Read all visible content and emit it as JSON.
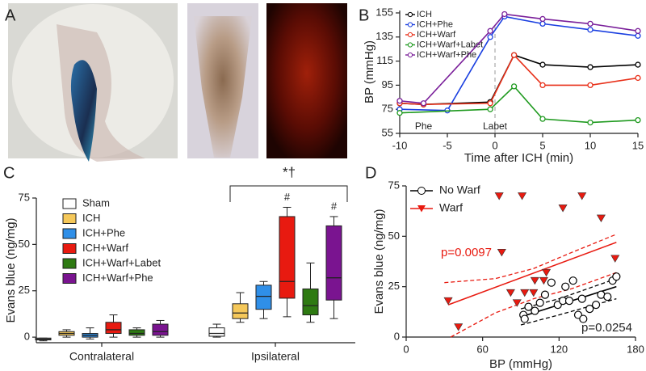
{
  "image_panel": {
    "label": "A"
  },
  "chart_data": [
    {
      "type": "line",
      "panel": "B",
      "y_label": "BP (mmHg)",
      "x_label": "Time after ICH (min)",
      "xlim": [
        -10,
        15
      ],
      "xticks": [
        -10,
        -5,
        0,
        5,
        10,
        15
      ],
      "ylim": [
        55,
        157
      ],
      "yticks": [
        55,
        75,
        95,
        115,
        135,
        155
      ],
      "annotations": [
        "Phe",
        "Labet"
      ],
      "legend": "upper left",
      "series": [
        {
          "name": "ICH",
          "color": "#000000",
          "x": [
            -10,
            -7.5,
            -0.5,
            2,
            5,
            10,
            15
          ],
          "values": [
            80,
            79,
            81,
            120,
            112,
            110,
            112
          ]
        },
        {
          "name": "ICH+Phe",
          "color": "#1a3fe0",
          "x": [
            -10,
            -5,
            -0.5,
            1,
            5,
            10,
            15
          ],
          "values": [
            75,
            74,
            135,
            152,
            146,
            141,
            136
          ]
        },
        {
          "name": "ICH+Warf",
          "color": "#e8311a",
          "x": [
            -10,
            -7.5,
            -0.5,
            2,
            5,
            10,
            15
          ],
          "values": [
            80,
            79,
            80,
            120,
            95,
            95,
            101
          ]
        },
        {
          "name": "ICH+Warf+Labet",
          "color": "#1f9a1f",
          "x": [
            -10,
            -0.5,
            2,
            5,
            10,
            15
          ],
          "values": [
            72,
            75,
            94,
            67,
            64,
            66
          ]
        },
        {
          "name": "ICH+Warf+Phe",
          "color": "#7a1f9a",
          "x": [
            -10,
            -7.5,
            -0.5,
            1,
            5,
            10,
            15
          ],
          "values": [
            82,
            80,
            140,
            154,
            150,
            146,
            140
          ]
        }
      ]
    },
    {
      "type": "box",
      "panel": "C",
      "y_label": "Evans blue (ng/mg)",
      "categories": [
        "Contralateral",
        "Ipsilateral"
      ],
      "ylim": [
        -3,
        75
      ],
      "yticks": [
        0,
        25,
        50,
        75
      ],
      "annotations": [
        "*†",
        "#",
        "#"
      ],
      "series": [
        {
          "name": "Sham",
          "color": "#ffffff",
          "values": [
            [
              -2,
              -1.5,
              -1,
              -0.5,
              -0.5
            ],
            [
              0,
              0.5,
              2,
              5,
              7
            ]
          ]
        },
        {
          "name": "ICH",
          "color": "#f5c85a",
          "values": [
            [
              0,
              1,
              2,
              3,
              4
            ],
            [
              8,
              10,
              13,
              18,
              24
            ]
          ]
        },
        {
          "name": "ICH+Phe",
          "color": "#2f8fe8",
          "values": [
            [
              -1,
              0,
              1,
              2,
              5
            ],
            [
              10,
              15,
              22,
              28,
              30
            ]
          ]
        },
        {
          "name": "ICH+Warf",
          "color": "#e81a10",
          "values": [
            [
              0,
              2,
              4,
              8,
              12
            ],
            [
              11,
              21,
              30,
              65,
              70
            ]
          ]
        },
        {
          "name": "ICH+Warf+Labet",
          "color": "#2e7a12",
          "values": [
            [
              0,
              1,
              2,
              4,
              5
            ],
            [
              8,
              12,
              17,
              26,
              40
            ]
          ]
        },
        {
          "name": "ICH+Warf+Phe",
          "color": "#7a1490",
          "values": [
            [
              0,
              1,
              3,
              7,
              9
            ],
            [
              10,
              20,
              32,
              60,
              65
            ]
          ]
        }
      ]
    },
    {
      "type": "scatter",
      "panel": "D",
      "x_label": "BP (mmHg)",
      "y_label": "Evans blue (ng/mg)",
      "xlim": [
        0,
        180
      ],
      "xticks": [
        0,
        60,
        120,
        180
      ],
      "ylim": [
        0,
        75
      ],
      "yticks": [
        0,
        25,
        50,
        75
      ],
      "annotations": [
        "p=0.0097",
        "p=0.0254"
      ],
      "series": [
        {
          "name": "No Warf",
          "color": "#000000",
          "marker": "circle",
          "x": [
            92,
            96,
            101,
            105,
            109,
            114,
            119,
            123,
            128,
            131,
            138,
            144,
            149,
            153,
            158,
            162,
            165,
            135,
            139,
            93,
            125
          ],
          "values": [
            11,
            15,
            13,
            17,
            21,
            27,
            16,
            18,
            18,
            28,
            19,
            14,
            16,
            21,
            20,
            28,
            30,
            11,
            9,
            9,
            25
          ]
        },
        {
          "name": "Warf",
          "color": "#e81a10",
          "marker": "triangle",
          "x": [
            33,
            41,
            73,
            91,
            75,
            82,
            93,
            100,
            101,
            108,
            110,
            123,
            138,
            153,
            164,
            87
          ],
          "values": [
            18,
            5,
            70,
            70,
            42,
            22,
            22,
            22,
            28,
            28,
            32,
            64,
            70,
            59,
            39,
            17
          ]
        }
      ],
      "fits": [
        {
          "color": "#e81a10",
          "dashed": false,
          "x": [
            33,
            165
          ],
          "y": [
            16,
            47
          ]
        },
        {
          "color": "#e81a10",
          "dashed": true,
          "x": [
            35,
            70,
            100,
            130,
            165
          ],
          "y": [
            0,
            12,
            19,
            24,
            32
          ]
        },
        {
          "color": "#e81a10",
          "dashed": true,
          "x": [
            30,
            70,
            100,
            130,
            165
          ],
          "y": [
            27,
            29,
            34,
            42,
            51
          ]
        },
        {
          "color": "#000000",
          "dashed": false,
          "x": [
            90,
            165
          ],
          "y": [
            10,
            25
          ]
        },
        {
          "color": "#000000",
          "dashed": true,
          "x": [
            90,
            120,
            165
          ],
          "y": [
            14,
            19,
            29
          ]
        },
        {
          "color": "#000000",
          "dashed": true,
          "x": [
            90,
            120,
            165
          ],
          "y": [
            6,
            11,
            19
          ]
        }
      ]
    }
  ]
}
